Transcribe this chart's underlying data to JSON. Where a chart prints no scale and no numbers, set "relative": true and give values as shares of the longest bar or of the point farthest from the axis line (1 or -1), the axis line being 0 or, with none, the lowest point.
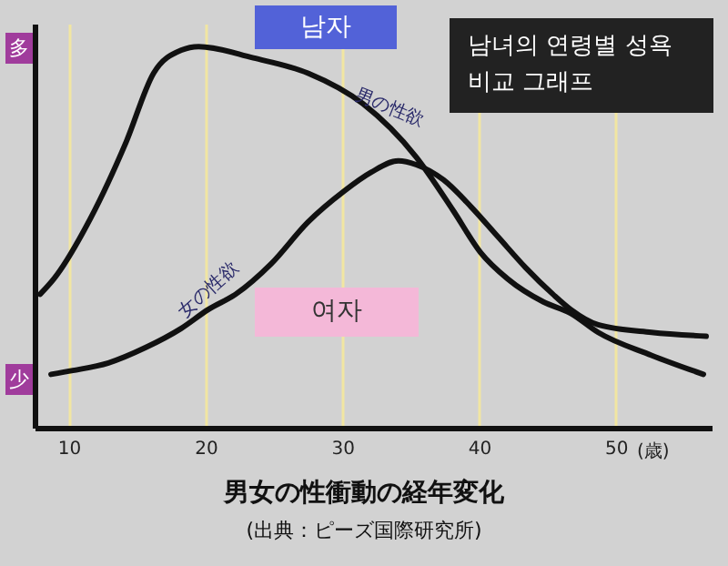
{
  "chart_data": {
    "type": "line",
    "title": "남녀의 연령별 성욕 비교 그래프",
    "subtitle": "男女の性衝動の経年変化",
    "xlabel": "(歳)",
    "relative": true,
    "xlim": [
      7.5,
      57
    ],
    "xticks": [
      10,
      20,
      30,
      40,
      50
    ],
    "grid": "x",
    "annotations": [
      "多",
      "少",
      {
        "text": "男の性欲",
        "x": 33,
        "y": 0.8
      },
      {
        "text": "女の性欲",
        "x": 21,
        "y": 0.33
      },
      "(出典：ピーズ国際研究所)"
    ],
    "series": [
      {
        "name": "남자",
        "color": "#111111",
        "x": [
          7.9,
          8.9,
          11.6,
          14.2,
          16.2,
          18.2,
          19.5,
          23.5,
          27.5,
          31.5,
          35.4,
          38.1,
          40.1,
          42.1,
          44.7,
          46.7,
          48.7,
          52.6,
          56.4
        ],
        "values": [
          0.35,
          0.39,
          0.55,
          0.75,
          0.93,
          0.99,
          1,
          0.97,
          0.93,
          0.85,
          0.71,
          0.57,
          0.46,
          0.39,
          0.33,
          0.3,
          0.25,
          0.19,
          0.14
        ]
      },
      {
        "name": "여자",
        "color": "#111111",
        "x": [
          8.7,
          10.3,
          12.9,
          15.6,
          18.2,
          20.2,
          22.2,
          24.8,
          27.5,
          30.1,
          32.1,
          34.1,
          35.4,
          37.4,
          39.4,
          41.4,
          43.4,
          45.4,
          46.7,
          48.7,
          52.6,
          56.6
        ],
        "values": [
          0.14,
          0.15,
          0.17,
          0.21,
          0.26,
          0.31,
          0.35,
          0.43,
          0.54,
          0.62,
          0.67,
          0.7,
          0.69,
          0.65,
          0.58,
          0.5,
          0.42,
          0.35,
          0.31,
          0.27,
          0.25,
          0.24
        ]
      }
    ]
  }
}
